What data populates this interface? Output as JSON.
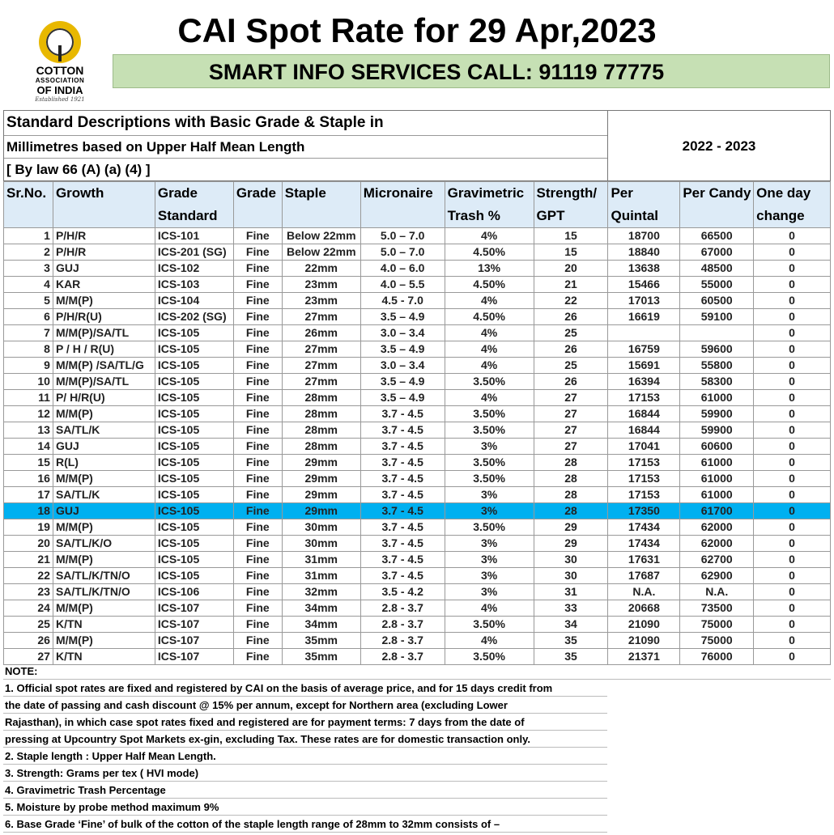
{
  "logo": {
    "line1": "COTTON",
    "line2": "ASSOCIATION",
    "line3": "OF INDIA",
    "line4": "Established 1921"
  },
  "title": "CAI Spot Rate for 29 Apr,2023",
  "banner": "SMART INFO SERVICES CALL: 91119 77775",
  "description": {
    "line1": "Standard Descriptions with Basic Grade & Staple in",
    "line2": "Millimetres based on Upper Half Mean Length",
    "line3": "[ By law 66 (A) (a) (4) ]"
  },
  "season": "2022 - 2023",
  "columns": [
    "Sr.No.",
    "Growth",
    "Grade Standard",
    "Grade",
    "Staple",
    "Micronaire",
    "Gravimetric Trash %",
    "Strength/ GPT",
    "Per Quintal",
    "Per Candy",
    "One day change"
  ],
  "highlight_color": "#00b0f0",
  "rows": [
    {
      "sr": "1",
      "growth": "P/H/R",
      "std": "ICS-101",
      "grade": "Fine",
      "staple": "Below 22mm",
      "mic": "5.0 – 7.0",
      "trash": "4%",
      "gpt": "15",
      "quintal": "18700",
      "candy": "66500",
      "change": "0"
    },
    {
      "sr": "2",
      "growth": "P/H/R",
      "std": "ICS-201 (SG)",
      "grade": "Fine",
      "staple": "Below 22mm",
      "mic": "5.0 – 7.0",
      "trash": "4.50%",
      "gpt": "15",
      "quintal": "18840",
      "candy": "67000",
      "change": "0"
    },
    {
      "sr": "3",
      "growth": "GUJ",
      "std": "ICS-102",
      "grade": "Fine",
      "staple": "22mm",
      "mic": "4.0 – 6.0",
      "trash": "13%",
      "gpt": "20",
      "quintal": "13638",
      "candy": "48500",
      "change": "0"
    },
    {
      "sr": "4",
      "growth": "KAR",
      "std": "ICS-103",
      "grade": "Fine",
      "staple": "23mm",
      "mic": "4.0 – 5.5",
      "trash": "4.50%",
      "gpt": "21",
      "quintal": "15466",
      "candy": "55000",
      "change": "0"
    },
    {
      "sr": "5",
      "growth": "M/M(P)",
      "std": "ICS-104",
      "grade": "Fine",
      "staple": "23mm",
      "mic": "4.5 - 7.0",
      "trash": "4%",
      "gpt": "22",
      "quintal": "17013",
      "candy": "60500",
      "change": "0"
    },
    {
      "sr": "6",
      "growth": "P/H/R(U)",
      "std": "ICS-202 (SG)",
      "grade": "Fine",
      "staple": "27mm",
      "mic": "3.5 – 4.9",
      "trash": "4.50%",
      "gpt": "26",
      "quintal": "16619",
      "candy": "59100",
      "change": "0"
    },
    {
      "sr": "7",
      "growth": "M/M(P)/SA/TL",
      "std": "ICS-105",
      "grade": "Fine",
      "staple": "26mm",
      "mic": "3.0 – 3.4",
      "trash": "4%",
      "gpt": "25",
      "quintal": "",
      "candy": "",
      "change": "0"
    },
    {
      "sr": "8",
      "growth": "P / H / R(U)",
      "std": "ICS-105",
      "grade": "Fine",
      "staple": "27mm",
      "mic": "3.5 – 4.9",
      "trash": "4%",
      "gpt": "26",
      "quintal": "16759",
      "candy": "59600",
      "change": "0"
    },
    {
      "sr": "9",
      "growth": "M/M(P) /SA/TL/G",
      "std": "ICS-105",
      "grade": "Fine",
      "staple": "27mm",
      "mic": "3.0 – 3.4",
      "trash": "4%",
      "gpt": "25",
      "quintal": "15691",
      "candy": "55800",
      "change": "0"
    },
    {
      "sr": "10",
      "growth": "M/M(P)/SA/TL",
      "std": "ICS-105",
      "grade": "Fine",
      "staple": "27mm",
      "mic": "3.5 – 4.9",
      "trash": "3.50%",
      "gpt": "26",
      "quintal": "16394",
      "candy": "58300",
      "change": "0"
    },
    {
      "sr": "11",
      "growth": "P/ H/R(U)",
      "std": "ICS-105",
      "grade": "Fine",
      "staple": "28mm",
      "mic": "3.5 – 4.9",
      "trash": "4%",
      "gpt": "27",
      "quintal": "17153",
      "candy": "61000",
      "change": "0"
    },
    {
      "sr": "12",
      "growth": "M/M(P)",
      "std": "ICS-105",
      "grade": "Fine",
      "staple": "28mm",
      "mic": "3.7 - 4.5",
      "trash": "3.50%",
      "gpt": "27",
      "quintal": "16844",
      "candy": "59900",
      "change": "0"
    },
    {
      "sr": "13",
      "growth": "SA/TL/K",
      "std": "ICS-105",
      "grade": "Fine",
      "staple": "28mm",
      "mic": "3.7 - 4.5",
      "trash": "3.50%",
      "gpt": "27",
      "quintal": "16844",
      "candy": "59900",
      "change": "0"
    },
    {
      "sr": "14",
      "growth": "GUJ",
      "std": "ICS-105",
      "grade": "Fine",
      "staple": "28mm",
      "mic": "3.7 - 4.5",
      "trash": "3%",
      "gpt": "27",
      "quintal": "17041",
      "candy": "60600",
      "change": "0"
    },
    {
      "sr": "15",
      "growth": "R(L)",
      "std": "ICS-105",
      "grade": "Fine",
      "staple": "29mm",
      "mic": "3.7 - 4.5",
      "trash": "3.50%",
      "gpt": "28",
      "quintal": "17153",
      "candy": "61000",
      "change": "0"
    },
    {
      "sr": "16",
      "growth": "M/M(P)",
      "std": "ICS-105",
      "grade": "Fine",
      "staple": "29mm",
      "mic": "3.7 - 4.5",
      "trash": "3.50%",
      "gpt": "28",
      "quintal": "17153",
      "candy": "61000",
      "change": "0"
    },
    {
      "sr": "17",
      "growth": "SA/TL/K",
      "std": "ICS-105",
      "grade": "Fine",
      "staple": "29mm",
      "mic": "3.7 - 4.5",
      "trash": "3%",
      "gpt": "28",
      "quintal": "17153",
      "candy": "61000",
      "change": "0"
    },
    {
      "sr": "18",
      "growth": "GUJ",
      "std": "ICS-105",
      "grade": "Fine",
      "staple": "29mm",
      "mic": "3.7 - 4.5",
      "trash": "3%",
      "gpt": "28",
      "quintal": "17350",
      "candy": "61700",
      "change": "0",
      "highlight": true
    },
    {
      "sr": "19",
      "growth": "M/M(P)",
      "std": "ICS-105",
      "grade": "Fine",
      "staple": "30mm",
      "mic": "3.7 - 4.5",
      "trash": "3.50%",
      "gpt": "29",
      "quintal": "17434",
      "candy": "62000",
      "change": "0"
    },
    {
      "sr": "20",
      "growth": "SA/TL/K/O",
      "std": "ICS-105",
      "grade": "Fine",
      "staple": "30mm",
      "mic": "3.7 - 4.5",
      "trash": "3%",
      "gpt": "29",
      "quintal": "17434",
      "candy": "62000",
      "change": "0"
    },
    {
      "sr": "21",
      "growth": "M/M(P)",
      "std": "ICS-105",
      "grade": "Fine",
      "staple": "31mm",
      "mic": "3.7 - 4.5",
      "trash": "3%",
      "gpt": "30",
      "quintal": "17631",
      "candy": "62700",
      "change": "0"
    },
    {
      "sr": "22",
      "growth": "SA/TL/K/TN/O",
      "std": "ICS-105",
      "grade": "Fine",
      "staple": "31mm",
      "mic": "3.7 - 4.5",
      "trash": "3%",
      "gpt": "30",
      "quintal": "17687",
      "candy": "62900",
      "change": "0"
    },
    {
      "sr": "23",
      "growth": "SA/TL/K/TN/O",
      "std": "ICS-106",
      "grade": "Fine",
      "staple": "32mm",
      "mic": "3.5 - 4.2",
      "trash": "3%",
      "gpt": "31",
      "quintal": "N.A.",
      "candy": "N.A.",
      "change": "0"
    },
    {
      "sr": "24",
      "growth": "M/M(P)",
      "std": "ICS-107",
      "grade": "Fine",
      "staple": "34mm",
      "mic": "2.8 - 3.7",
      "trash": "4%",
      "gpt": "33",
      "quintal": "20668",
      "candy": "73500",
      "change": "0"
    },
    {
      "sr": "25",
      "growth": "K/TN",
      "std": "ICS-107",
      "grade": "Fine",
      "staple": "34mm",
      "mic": "2.8 - 3.7",
      "trash": "3.50%",
      "gpt": "34",
      "quintal": "21090",
      "candy": "75000",
      "change": "0"
    },
    {
      "sr": "26",
      "growth": "M/M(P)",
      "std": "ICS-107",
      "grade": "Fine",
      "staple": "35mm",
      "mic": "2.8 - 3.7",
      "trash": "4%",
      "gpt": "35",
      "quintal": "21090",
      "candy": "75000",
      "change": "0"
    },
    {
      "sr": "27",
      "growth": "K/TN",
      "std": "ICS-107",
      "grade": "Fine",
      "staple": "35mm",
      "mic": "2.8 - 3.7",
      "trash": "3.50%",
      "gpt": "35",
      "quintal": "21371",
      "candy": "76000",
      "change": "0"
    }
  ],
  "notes": {
    "heading": "NOTE:",
    "n1_l1": "1. Official spot rates are fixed and registered by CAI on the basis of average price, and for 15 days credit from",
    "n1_l2": "the date of passing and cash discount @ 15% per annum, except for Northern area (excluding Lower",
    "n1_l3": "Rajasthan), in which case spot rates fixed and registered are for payment terms: 7 days from the date of",
    "n1_l4": "pressing at Upcountry Spot Markets ex-gin, excluding Tax. These rates are for domestic transaction only.",
    "n2": "2. Staple length : Upper Half Mean Length.",
    "n3": "3. Strength: Grams per tex ( HVI mode)",
    "n4": "4. Gravimetric Trash Percentage",
    "n5": "5. Moisture by probe method maximum 9%",
    "n6": "6. Base Grade ‘Fine’ of bulk of the cotton of the staple length range of 28mm to 32mm consists of –"
  }
}
